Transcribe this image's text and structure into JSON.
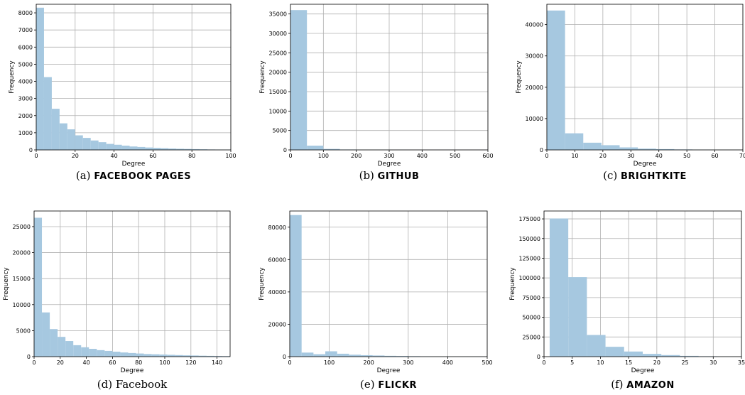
{
  "chart_data": [
    {
      "type": "bar",
      "caption_prefix": "(a)",
      "caption_name": "Facebook Pages",
      "caption_smallcaps": true,
      "xlabel": "Degree",
      "ylabel": "Frequency",
      "xlim": [
        0,
        100
      ],
      "ylim": [
        0,
        8500
      ],
      "xticks": [
        0,
        20,
        40,
        60,
        80,
        100
      ],
      "yticks": [
        0,
        1000,
        2000,
        3000,
        4000,
        5000,
        6000,
        7000,
        8000
      ],
      "grid": true,
      "bar_color": "#a6c8e0",
      "bin_edges": [
        0,
        4,
        8,
        12,
        16,
        20,
        24,
        28,
        32,
        36,
        40,
        44,
        48,
        52,
        56,
        60,
        64,
        68,
        72,
        76,
        80,
        84,
        88,
        92,
        96,
        100
      ],
      "values": [
        8300,
        4250,
        2400,
        1550,
        1200,
        850,
        700,
        550,
        450,
        350,
        300,
        250,
        200,
        170,
        140,
        120,
        100,
        80,
        65,
        55,
        45,
        35,
        25,
        20,
        15
      ]
    },
    {
      "type": "bar",
      "caption_prefix": "(b)",
      "caption_name": "GitHub",
      "caption_smallcaps": true,
      "xlabel": "Degree",
      "ylabel": "Frequency",
      "xlim": [
        0,
        600
      ],
      "ylim": [
        0,
        37500
      ],
      "xticks": [
        0,
        100,
        200,
        300,
        400,
        500,
        600
      ],
      "yticks": [
        0,
        5000,
        10000,
        15000,
        20000,
        25000,
        30000,
        35000
      ],
      "grid": true,
      "bar_color": "#a6c8e0",
      "bin_edges": [
        0,
        50,
        100,
        150,
        200,
        250,
        300,
        350,
        400,
        450,
        500,
        550,
        600
      ],
      "values": [
        36000,
        1100,
        250,
        100,
        50,
        30,
        20,
        10,
        8,
        5,
        3,
        2
      ]
    },
    {
      "type": "bar",
      "caption_prefix": "(c)",
      "caption_name": "BrightKite",
      "caption_smallcaps": true,
      "xlabel": "Degree",
      "ylabel": "Frequency",
      "xlim": [
        0,
        70
      ],
      "ylim": [
        0,
        46500
      ],
      "xticks": [
        0,
        10,
        20,
        30,
        40,
        50,
        60,
        70
      ],
      "yticks": [
        0,
        10000,
        20000,
        30000,
        40000
      ],
      "grid": true,
      "bar_color": "#a6c8e0",
      "bin_edges": [
        0,
        6.5,
        13,
        19.5,
        26,
        32.5,
        39,
        45.5,
        52,
        58.5,
        65,
        70
      ],
      "values": [
        44500,
        5300,
        2300,
        1500,
        800,
        400,
        250,
        150,
        80,
        40,
        20
      ]
    },
    {
      "type": "bar",
      "caption_prefix": "(d)",
      "caption_name": "Facebook",
      "caption_smallcaps": false,
      "xlabel": "Degree",
      "ylabel": "Frequency",
      "xlim": [
        0,
        150
      ],
      "ylim": [
        0,
        28000
      ],
      "xticks": [
        0,
        20,
        40,
        60,
        80,
        100,
        120,
        140
      ],
      "yticks": [
        0,
        5000,
        10000,
        15000,
        20000,
        25000
      ],
      "grid": true,
      "bar_color": "#a6c8e0",
      "bin_edges": [
        0,
        6,
        12,
        18,
        24,
        30,
        36,
        42,
        48,
        54,
        60,
        66,
        72,
        78,
        84,
        90,
        96,
        102,
        108,
        114,
        120,
        126,
        132,
        138,
        144,
        150
      ],
      "values": [
        26700,
        8500,
        5300,
        3800,
        3000,
        2200,
        1800,
        1500,
        1250,
        1100,
        950,
        800,
        700,
        600,
        500,
        450,
        400,
        350,
        300,
        250,
        220,
        180,
        150,
        120,
        100
      ]
    },
    {
      "type": "bar",
      "caption_prefix": "(e)",
      "caption_name": "Flickr",
      "caption_smallcaps": true,
      "xlabel": "Degree",
      "ylabel": "Frequency",
      "xlim": [
        0,
        500
      ],
      "ylim": [
        0,
        90000
      ],
      "xticks": [
        0,
        100,
        200,
        300,
        400,
        500
      ],
      "yticks": [
        0,
        20000,
        40000,
        60000,
        80000
      ],
      "grid": true,
      "bar_color": "#a6c8e0",
      "bin_edges": [
        0,
        30,
        60,
        90,
        120,
        150,
        180,
        210,
        240,
        270,
        300,
        330,
        360,
        390,
        420,
        450,
        480,
        500
      ],
      "values": [
        87500,
        2500,
        1500,
        3300,
        1800,
        1200,
        900,
        700,
        500,
        400,
        300,
        200,
        150,
        100,
        80,
        50,
        30
      ]
    },
    {
      "type": "bar",
      "caption_prefix": "(f)",
      "caption_name": "Amazon",
      "caption_smallcaps": true,
      "xlabel": "Degree",
      "ylabel": "Frequency",
      "xlim": [
        0,
        35
      ],
      "ylim": [
        0,
        185000
      ],
      "xticks": [
        0,
        5,
        10,
        15,
        20,
        25,
        30,
        35
      ],
      "yticks": [
        0,
        25000,
        50000,
        75000,
        100000,
        125000,
        150000,
        175000
      ],
      "grid": true,
      "bar_color": "#a6c8e0",
      "bin_edges": [
        1,
        4.3,
        7.6,
        10.9,
        14.2,
        17.5,
        20.8,
        24.1,
        27.4,
        30.7,
        34
      ],
      "values": [
        175500,
        101000,
        27500,
        12500,
        6500,
        3500,
        2000,
        1000,
        500,
        200
      ]
    }
  ]
}
